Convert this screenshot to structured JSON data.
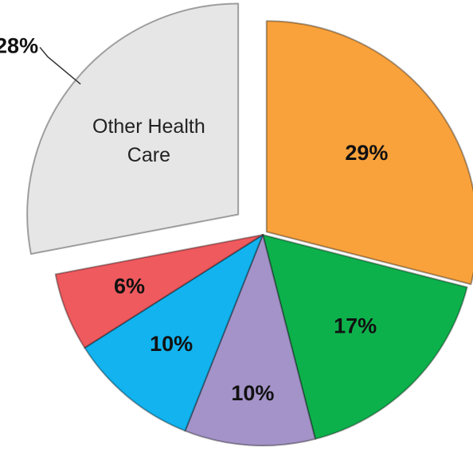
{
  "chart_data": {
    "type": "pie",
    "categories": [
      null,
      null,
      null,
      null,
      null,
      "Other Health Care"
    ],
    "values": [
      29,
      17,
      10,
      10,
      6,
      28
    ],
    "value_labels": [
      "29%",
      "17%",
      "10%",
      "10%",
      "6%",
      "28%"
    ],
    "colors": [
      "#f9a23c",
      "#0db14b",
      "#a393c8",
      "#12b3ee",
      "#ef5a5e",
      "#e6e6e6"
    ]
  }
}
